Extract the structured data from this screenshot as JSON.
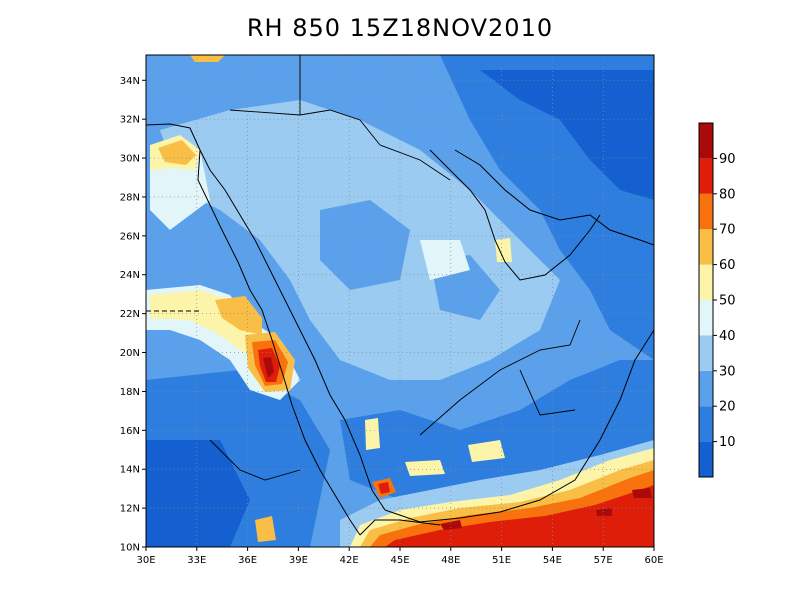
{
  "title": "RH 850 15Z18NOV2010",
  "map": {
    "lat_ticks": [
      "10N",
      "12N",
      "14N",
      "16N",
      "18N",
      "20N",
      "22N",
      "24N",
      "26N",
      "28N",
      "30N",
      "32N",
      "34N"
    ],
    "lon_ticks": [
      "30E",
      "33E",
      "36E",
      "39E",
      "42E",
      "45E",
      "48E",
      "51E",
      "54E",
      "57E",
      "60E"
    ],
    "lon_range": [
      30,
      60
    ],
    "lat_range": [
      10,
      35.3
    ],
    "grid": true
  },
  "colorbar": {
    "labels": [
      "10",
      "20",
      "30",
      "40",
      "50",
      "60",
      "70",
      "80",
      "90"
    ],
    "colors": [
      "#1560d0",
      "#2e7ee0",
      "#5aa0ea",
      "#9ccbf2",
      "#e2f6fa",
      "#fcf4a8",
      "#f9be45",
      "#f8720e",
      "#de1e08",
      "#aa0a0a"
    ]
  },
  "colors": {
    "coast": "#000000",
    "border": "#000000",
    "grid": "#8a8a8a"
  }
}
